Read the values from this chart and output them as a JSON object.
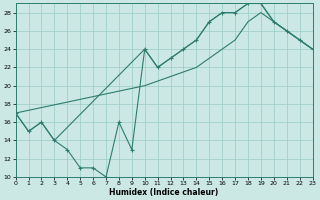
{
  "xlabel": "Humidex (Indice chaleur)",
  "bg_color": "#cce8e4",
  "grid_color": "#99ccc6",
  "line_color": "#2d7d6e",
  "line1_x": [
    0,
    1,
    2,
    3,
    4,
    5,
    6,
    7,
    8,
    9,
    10,
    11,
    12,
    13,
    14,
    15,
    16,
    17,
    18,
    19,
    20,
    21,
    22,
    23
  ],
  "line1_y": [
    17,
    15,
    16,
    14,
    13,
    11,
    11,
    10,
    16,
    13,
    24,
    22,
    23,
    24,
    25,
    27,
    28,
    28,
    29,
    29,
    27,
    26,
    25,
    24
  ],
  "line2_x": [
    0,
    1,
    2,
    3,
    10,
    11,
    12,
    13,
    14,
    15,
    16,
    17,
    18,
    19,
    20,
    21,
    22,
    23
  ],
  "line2_y": [
    17,
    15,
    16,
    14,
    24,
    22,
    23,
    24,
    25,
    27,
    28,
    28,
    29,
    29,
    27,
    26,
    25,
    24
  ],
  "line3_x": [
    0,
    10,
    14,
    15,
    16,
    17,
    18,
    19,
    20,
    21,
    22,
    23
  ],
  "line3_y": [
    17,
    20,
    22,
    23,
    24,
    25,
    27,
    28,
    27,
    26,
    25,
    24
  ],
  "xlim": [
    0,
    23
  ],
  "ylim": [
    10,
    29
  ],
  "yticks": [
    10,
    12,
    14,
    16,
    18,
    20,
    22,
    24,
    26,
    28
  ],
  "xticks": [
    0,
    1,
    2,
    3,
    4,
    5,
    6,
    7,
    8,
    9,
    10,
    11,
    12,
    13,
    14,
    15,
    16,
    17,
    18,
    19,
    20,
    21,
    22,
    23
  ],
  "figsize": [
    3.2,
    2.0
  ],
  "dpi": 100
}
